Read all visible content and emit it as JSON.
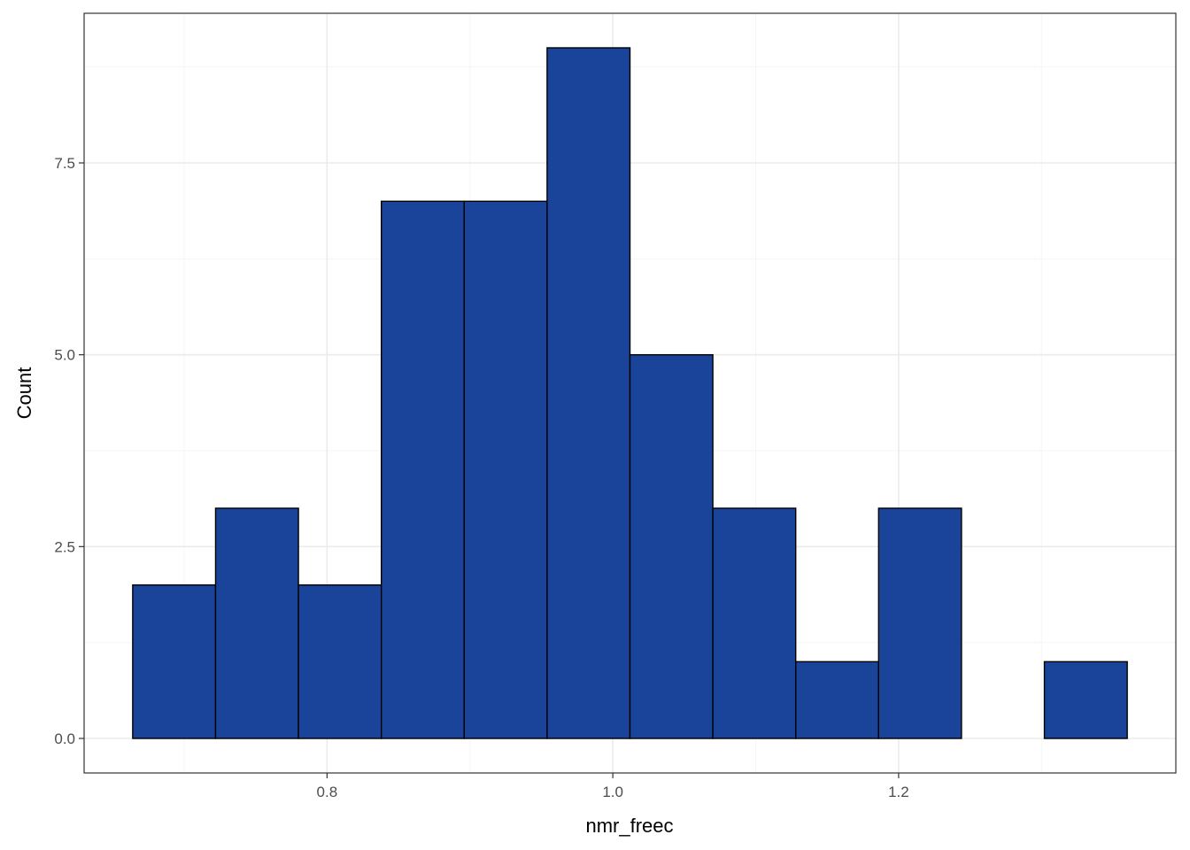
{
  "chart_data": {
    "type": "bar",
    "title": "",
    "xlabel": "nmr_freec",
    "ylabel": "Count",
    "bin_edges": [
      0.664,
      0.722,
      0.78,
      0.838,
      0.896,
      0.954,
      1.012,
      1.07,
      1.128,
      1.186,
      1.244,
      1.302,
      1.36
    ],
    "values": [
      2,
      3,
      2,
      7,
      7,
      9,
      5,
      3,
      1,
      3,
      0,
      1
    ],
    "xlim": [
      0.63,
      1.394
    ],
    "ylim": [
      -0.45,
      9.45
    ],
    "x_ticks": [
      0.8,
      1.0,
      1.2
    ],
    "x_tick_labels": [
      "0.8",
      "1.0",
      "1.2"
    ],
    "x_minor_ticks": [
      0.7,
      0.9,
      1.1,
      1.3
    ],
    "y_ticks": [
      0,
      2.5,
      5,
      7.5
    ],
    "y_tick_labels": [
      "0.0",
      "2.5",
      "5.0",
      "7.5"
    ],
    "y_minor_ticks": [
      1.25,
      3.75,
      6.25,
      8.75
    ],
    "grid": true,
    "legend": "none",
    "colors": {
      "bar_fill": "#1a4499",
      "bar_stroke": "#000000",
      "grid_major": "#ebebeb",
      "grid_minor": "#f5f5f5",
      "panel_border": "#333333"
    }
  }
}
